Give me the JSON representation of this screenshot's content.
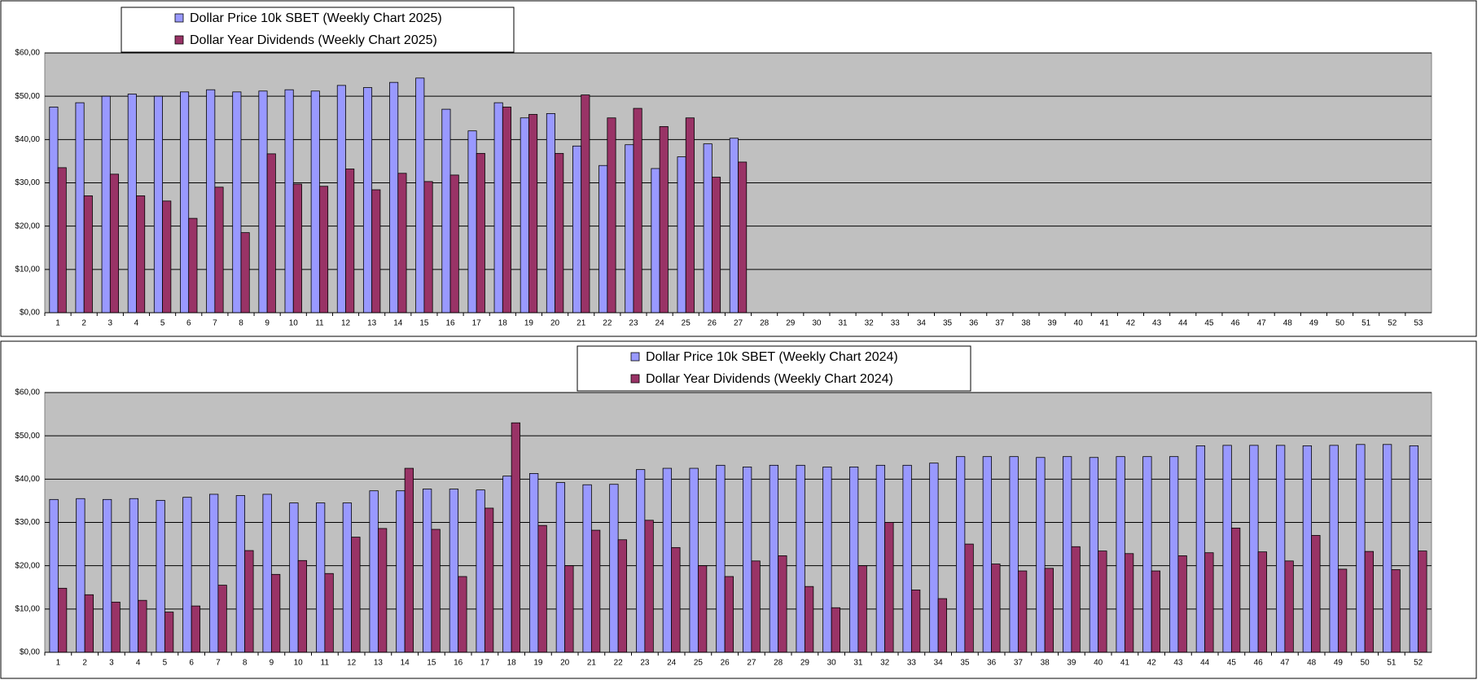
{
  "chart_data": [
    {
      "type": "bar",
      "categories": [
        "1",
        "2",
        "3",
        "4",
        "5",
        "6",
        "7",
        "8",
        "9",
        "10",
        "11",
        "12",
        "13",
        "14",
        "15",
        "16",
        "17",
        "18",
        "19",
        "20",
        "21",
        "22",
        "23",
        "24",
        "25",
        "26",
        "27",
        "28",
        "29",
        "30",
        "31",
        "32",
        "33",
        "34",
        "35",
        "36",
        "37",
        "38",
        "39",
        "40",
        "41",
        "42",
        "43",
        "44",
        "45",
        "46",
        "47",
        "48",
        "49",
        "50",
        "51",
        "52",
        "53"
      ],
      "series": [
        {
          "name": "Dollar Price 10k SBET (Weekly Chart 2025)",
          "color": "#9999ff",
          "values": [
            47.5,
            48.5,
            50,
            50.5,
            50,
            51,
            51.5,
            51,
            51.2,
            51.5,
            51.2,
            52.5,
            52,
            53.2,
            54.2,
            47,
            42,
            48.5,
            45,
            46,
            38.5,
            34,
            38.8,
            33.3,
            36,
            39,
            40.3,
            null,
            null,
            null,
            null,
            null,
            null,
            null,
            null,
            null,
            null,
            null,
            null,
            null,
            null,
            null,
            null,
            null,
            null,
            null,
            null,
            null,
            null,
            null,
            null,
            null,
            null
          ]
        },
        {
          "name": "Dollar Year Dividends (Weekly Chart 2025)",
          "color": "#993366",
          "values": [
            33.5,
            27,
            32,
            27,
            25.8,
            21.8,
            29,
            18.5,
            36.7,
            29.7,
            29.2,
            33.2,
            28.4,
            32.2,
            30.3,
            31.8,
            36.8,
            47.5,
            45.8,
            36.8,
            50.3,
            45,
            47.2,
            43,
            45,
            31.3,
            34.8,
            null,
            null,
            null,
            null,
            null,
            null,
            null,
            null,
            null,
            null,
            null,
            null,
            null,
            null,
            null,
            null,
            null,
            null,
            null,
            null,
            null,
            null,
            null,
            null,
            null,
            null
          ]
        }
      ],
      "ylim": [
        0,
        60
      ],
      "yticks": [
        {
          "value": 0,
          "label": "$0,00"
        },
        {
          "value": 10,
          "label": "$10,00"
        },
        {
          "value": 20,
          "label": "$20,00"
        },
        {
          "value": 30,
          "label": "$30,00"
        },
        {
          "value": 40,
          "label": "$40,00"
        },
        {
          "value": 50,
          "label": "$50,00"
        },
        {
          "value": 60,
          "label": "$60,00"
        }
      ],
      "grid": true,
      "legend": "top-left"
    },
    {
      "type": "bar",
      "categories": [
        "1",
        "2",
        "3",
        "4",
        "5",
        "6",
        "7",
        "8",
        "9",
        "10",
        "11",
        "12",
        "13",
        "14",
        "15",
        "16",
        "17",
        "18",
        "19",
        "20",
        "21",
        "22",
        "23",
        "24",
        "25",
        "26",
        "27",
        "28",
        "29",
        "30",
        "31",
        "32",
        "33",
        "34",
        "35",
        "36",
        "37",
        "38",
        "39",
        "40",
        "41",
        "42",
        "43",
        "44",
        "45",
        "46",
        "47",
        "48",
        "49",
        "50",
        "51",
        "52"
      ],
      "series": [
        {
          "name": "Dollar Price 10k SBET (Weekly Chart 2024)",
          "color": "#9999ff",
          "values": [
            35.3,
            35.5,
            35.3,
            35.5,
            35.1,
            35.8,
            36.5,
            36.2,
            36.5,
            34.5,
            34.5,
            34.5,
            37.3,
            37.3,
            37.7,
            37.7,
            37.5,
            40.7,
            41.3,
            39.2,
            38.7,
            38.8,
            42.2,
            42.5,
            42.5,
            43.2,
            42.8,
            43.2,
            43.2,
            42.8,
            42.8,
            43.2,
            43.2,
            43.7,
            45.2,
            45.2,
            45.2,
            45,
            45.2,
            45,
            45.2,
            45.2,
            45.2,
            47.7,
            47.8,
            47.8,
            47.8,
            47.7,
            47.8,
            48,
            48,
            47.7
          ]
        },
        {
          "name": "Dollar Year Dividends (Weekly Chart 2024)",
          "color": "#993366",
          "values": [
            14.8,
            13.3,
            11.6,
            12,
            9.3,
            10.7,
            15.5,
            23.5,
            18,
            21.2,
            18.2,
            26.6,
            28.6,
            42.5,
            28.4,
            17.5,
            33.3,
            53,
            29.3,
            20,
            28.2,
            26,
            30.5,
            24.2,
            20,
            17.5,
            21.1,
            22.3,
            15.2,
            10.3,
            20,
            30,
            14.4,
            12.4,
            25,
            20.4,
            18.8,
            19.4,
            24.4,
            23.4,
            22.8,
            18.8,
            22.3,
            23,
            28.7,
            23.2,
            21.1,
            27,
            19.2,
            23.3,
            19.1,
            23.4
          ]
        }
      ],
      "ylim": [
        0,
        60
      ],
      "yticks": [
        {
          "value": 0,
          "label": "$0,00"
        },
        {
          "value": 10,
          "label": "$10,00"
        },
        {
          "value": 20,
          "label": "$20,00"
        },
        {
          "value": 30,
          "label": "$30,00"
        },
        {
          "value": 40,
          "label": "$40,00"
        },
        {
          "value": 50,
          "label": "$50,00"
        },
        {
          "value": 60,
          "label": "$60,00"
        }
      ],
      "grid": true,
      "legend": "top-center"
    }
  ]
}
